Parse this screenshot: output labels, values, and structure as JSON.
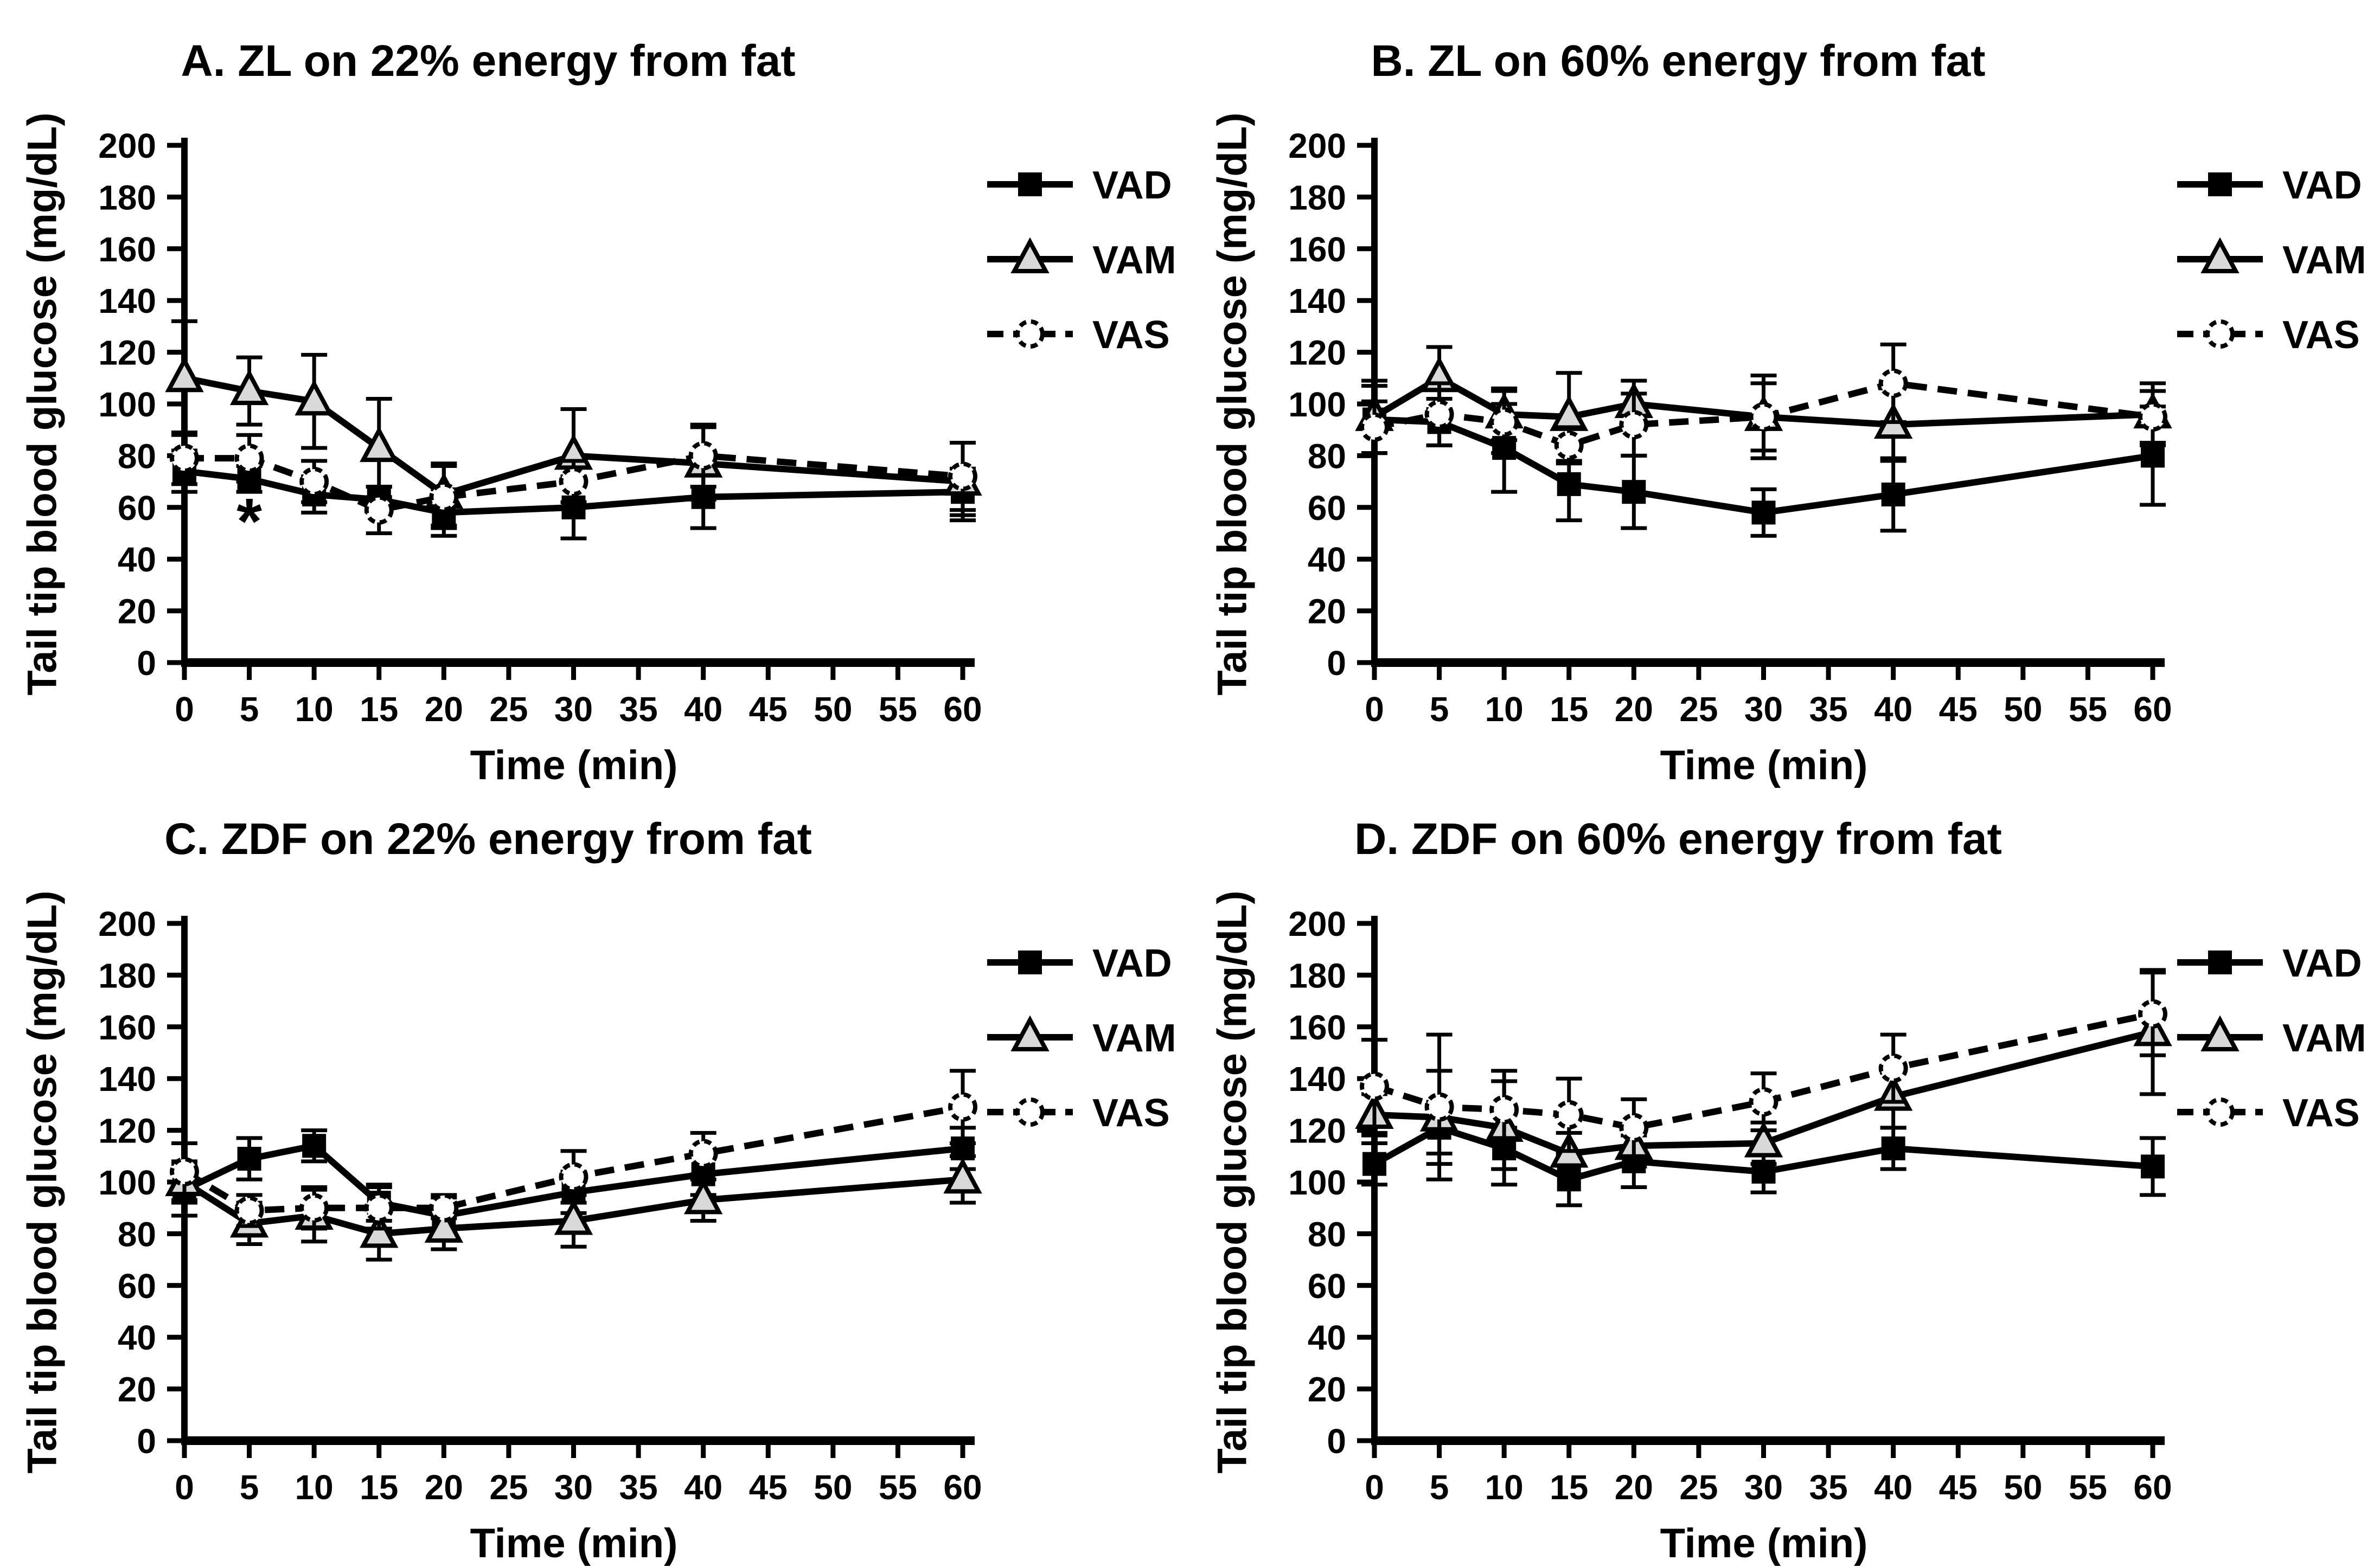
{
  "figure": {
    "background": "#ffffff",
    "ink": "#000000",
    "triangle_fill": "#d9d9d9",
    "circle_fill": "#ffffff",
    "y_axis": {
      "min": 0,
      "max": 200,
      "tick_step": 20
    },
    "x_axis": {
      "min": 0,
      "max": 60,
      "tick_step": 5
    },
    "legend": [
      {
        "label": "VAD",
        "marker": "square",
        "line": "solid"
      },
      {
        "label": "VAM",
        "marker": "triangle",
        "line": "solid"
      },
      {
        "label": "VAS",
        "marker": "circle",
        "line": "dashed"
      }
    ]
  },
  "chart_data": [
    {
      "id": "A",
      "type": "line",
      "title": "A. ZL on 22% energy from fat",
      "xlabel": "Time (min)",
      "ylabel": "Tail tip blood glucose (mg/dL)",
      "x": [
        0,
        5,
        10,
        15,
        20,
        30,
        40,
        60
      ],
      "xticks": [
        0,
        5,
        10,
        15,
        20,
        25,
        30,
        35,
        40,
        45,
        50,
        55,
        60
      ],
      "ylim": [
        0,
        200
      ],
      "yticks": [
        0,
        20,
        40,
        60,
        80,
        100,
        120,
        140,
        160,
        180,
        200
      ],
      "legend_position": "right-top",
      "grid": false,
      "series": [
        {
          "name": "VAD",
          "marker": "square",
          "line": "solid",
          "values": [
            74,
            71,
            65,
            63,
            58,
            60,
            64,
            66
          ],
          "errors": [
            8,
            5,
            7,
            5,
            9,
            12,
            12,
            9
          ]
        },
        {
          "name": "VAM",
          "marker": "triangle",
          "line": "solid",
          "values": [
            110,
            105,
            101,
            83,
            65,
            80,
            77,
            70
          ],
          "errors": [
            22,
            13,
            18,
            19,
            12,
            18,
            14,
            15
          ]
        },
        {
          "name": "VAS",
          "marker": "circle",
          "line": "dashed",
          "values": [
            79,
            79,
            70,
            59,
            64,
            70,
            80,
            72
          ],
          "errors": [
            10,
            9,
            8,
            9,
            12,
            8,
            12,
            13
          ]
        }
      ],
      "annotations": [
        {
          "x": 5,
          "y": 46,
          "text": "*"
        }
      ]
    },
    {
      "id": "B",
      "type": "line",
      "title": "B. ZL on 60% energy from fat",
      "xlabel": "Time (min)",
      "ylabel": "Tail tip blood glucose (mg/dL)",
      "x": [
        0,
        5,
        10,
        15,
        20,
        30,
        40,
        60
      ],
      "xticks": [
        0,
        5,
        10,
        15,
        20,
        25,
        30,
        35,
        40,
        45,
        50,
        55,
        60
      ],
      "ylim": [
        0,
        200
      ],
      "yticks": [
        0,
        20,
        40,
        60,
        80,
        100,
        120,
        140,
        160,
        180,
        200
      ],
      "legend_position": "right-top",
      "grid": false,
      "series": [
        {
          "name": "VAD",
          "marker": "square",
          "line": "solid",
          "values": [
            94,
            93,
            83,
            69,
            66,
            58,
            65,
            80
          ],
          "errors": [
            13,
            9,
            17,
            14,
            14,
            9,
            14,
            19
          ]
        },
        {
          "name": "VAM",
          "marker": "triangle",
          "line": "solid",
          "values": [
            95,
            110,
            96,
            95,
            100,
            95,
            92,
            96
          ],
          "errors": [
            14,
            12,
            10,
            17,
            9,
            13,
            14,
            12
          ]
        },
        {
          "name": "VAS",
          "marker": "circle",
          "line": "dashed",
          "values": [
            91,
            96,
            93,
            84,
            92,
            95,
            108,
            95
          ],
          "errors": [
            10,
            12,
            12,
            7,
            12,
            16,
            15,
            10
          ]
        }
      ],
      "annotations": []
    },
    {
      "id": "C",
      "type": "line",
      "title": "C. ZDF on 22% energy from fat",
      "xlabel": "Time (min)",
      "ylabel": "Tail tip blood glucose (mg/dL)",
      "x": [
        0,
        5,
        10,
        15,
        20,
        30,
        40,
        60
      ],
      "xticks": [
        0,
        5,
        10,
        15,
        20,
        25,
        30,
        35,
        40,
        45,
        50,
        55,
        60
      ],
      "ylim": [
        0,
        200
      ],
      "yticks": [
        0,
        20,
        40,
        60,
        80,
        100,
        120,
        140,
        160,
        180,
        200
      ],
      "legend_position": "right-top",
      "grid": false,
      "series": [
        {
          "name": "VAD",
          "marker": "square",
          "line": "solid",
          "values": [
            97,
            109,
            114,
            92,
            87,
            96,
            103,
            113
          ],
          "errors": [
            10,
            8,
            6,
            7,
            8,
            8,
            8,
            8
          ]
        },
        {
          "name": "VAM",
          "marker": "triangle",
          "line": "solid",
          "values": [
            100,
            84,
            87,
            80,
            82,
            85,
            93,
            101
          ],
          "errors": [
            8,
            8,
            10,
            10,
            8,
            10,
            8,
            9
          ]
        },
        {
          "name": "VAS",
          "marker": "circle",
          "line": "dashed",
          "values": [
            104,
            89,
            90,
            90,
            90,
            102,
            111,
            129
          ],
          "errors": [
            11,
            6,
            8,
            8,
            4,
            10,
            8,
            14
          ]
        }
      ],
      "annotations": []
    },
    {
      "id": "D",
      "type": "line",
      "title": "D. ZDF on 60% energy from fat",
      "xlabel": "Time (min)",
      "ylabel": "Tail tip blood glucose (mg/dL)",
      "x": [
        0,
        5,
        10,
        15,
        20,
        30,
        40,
        60
      ],
      "xticks": [
        0,
        5,
        10,
        15,
        20,
        25,
        30,
        35,
        40,
        45,
        50,
        55,
        60
      ],
      "ylim": [
        0,
        200
      ],
      "yticks": [
        0,
        20,
        40,
        60,
        80,
        100,
        120,
        140,
        160,
        180,
        200
      ],
      "legend_position": "right-top",
      "grid": false,
      "series": [
        {
          "name": "VAD",
          "marker": "square",
          "line": "solid",
          "values": [
            107,
            121,
            113,
            101,
            108,
            104,
            113,
            106
          ],
          "errors": [
            8,
            10,
            8,
            10,
            10,
            8,
            8,
            11
          ]
        },
        {
          "name": "VAM",
          "marker": "triangle",
          "line": "solid",
          "values": [
            126,
            125,
            121,
            111,
            114,
            115,
            133,
            158
          ],
          "errors": [
            8,
            18,
            22,
            8,
            8,
            8,
            12,
            24
          ]
        },
        {
          "name": "VAS",
          "marker": "circle",
          "line": "dashed",
          "values": [
            137,
            129,
            128,
            126,
            121,
            131,
            144,
            165
          ],
          "errors": [
            18,
            28,
            11,
            14,
            11,
            11,
            13,
            16
          ]
        }
      ],
      "annotations": []
    }
  ]
}
